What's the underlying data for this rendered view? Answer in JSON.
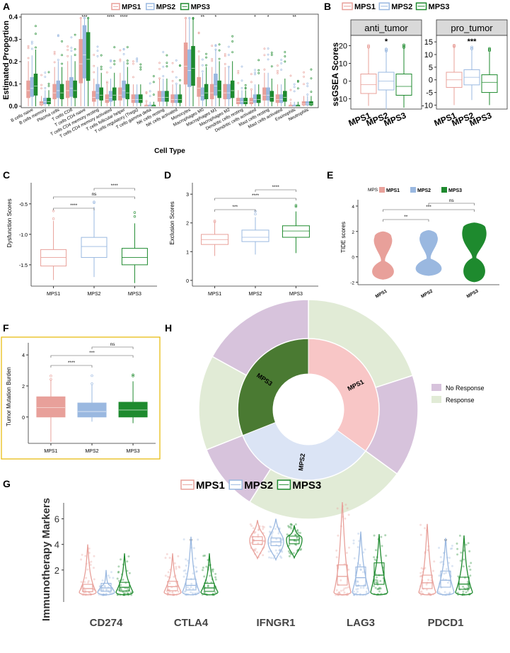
{
  "colors": {
    "mps1": "#e8a09a",
    "mps2": "#9ab8e0",
    "mps3": "#1e8a2e",
    "mps3_dark": "#4a7a32",
    "no_response": "#d7c3dc",
    "response": "#e1ebd6",
    "mps1_inner": "#f8c6c6",
    "mps2_inner": "#dbe4f5"
  },
  "panels": {
    "A": {
      "letter": "A",
      "legend": [
        "MPS1",
        "MPS2",
        "MPS3"
      ],
      "ylabel": "Estimated Proportion",
      "xlabel": "Cell Type",
      "yticks": [
        "0.0",
        "0.1",
        "0.2",
        "0.3",
        "0.4"
      ],
      "celltypes": [
        "B cells naive",
        "B cells memory",
        "Plasma cells",
        "T cells CD8",
        "T cells CD4 naive",
        "T cells CD4 memory resting",
        "T cells CD4 memory activated",
        "T cells follicular helper",
        "T cells regulatory (Tregs)",
        "T cells gamma delta",
        "NK cells resting",
        "NK cells activated",
        "Monocytes",
        "Macrophages M0",
        "Macrophages M1",
        "Macrophages M2",
        "Dendritic cells resting",
        "Dendritic cells activated",
        "Mast cells resting",
        "Mast cells activated",
        "Eosinophils",
        "Neutrophils"
      ],
      "sig": [
        "",
        "",
        "",
        "",
        "***",
        "",
        "****",
        "****",
        "",
        "",
        "",
        "",
        "",
        "**",
        "*",
        "",
        "",
        "*",
        "*",
        "",
        "**",
        ""
      ]
    },
    "B": {
      "letter": "B",
      "legend": [
        "MPS1",
        "MPS2",
        "MPS3"
      ],
      "ylabel": "ssGSEA Scores",
      "facets": [
        {
          "title": "anti_tumor",
          "sig": "*",
          "yticks": [
            "-10",
            "0",
            "10",
            "20"
          ],
          "xticks": [
            "MPS1",
            "MPS2",
            "MPS3"
          ]
        },
        {
          "title": "pro_tumor",
          "sig": "***",
          "yticks": [
            "-10",
            "-5",
            "0",
            "5",
            "10",
            "15"
          ],
          "xticks": [
            "MPS1",
            "MPS2",
            "MPS3"
          ]
        }
      ]
    },
    "C": {
      "letter": "C",
      "ylabel": "Dysfunction Scores",
      "yticks": [
        "-1.5",
        "-1.0",
        "-0.5"
      ],
      "xticks": [
        "MPS1",
        "MPS2",
        "MPS3"
      ],
      "brackets": [
        "****",
        "ns",
        "****"
      ]
    },
    "D": {
      "letter": "D",
      "ylabel": "Exclusion Scores",
      "yticks": [
        "0",
        "1",
        "2",
        "3"
      ],
      "xticks": [
        "MPS1",
        "MPS2",
        "MPS3"
      ],
      "brackets": [
        "***",
        "****",
        "****"
      ]
    },
    "E": {
      "letter": "E",
      "ylabel": "TIDE scores",
      "legend_title": "MPS",
      "legend": [
        "MPS1",
        "MPS2",
        "MPS3"
      ],
      "yticks": [
        "-2",
        "0",
        "2",
        "4"
      ],
      "xticks": [
        "MPS1",
        "MPS2",
        "MPS3"
      ],
      "brackets": [
        "**",
        "***",
        "ns"
      ]
    },
    "F": {
      "letter": "F",
      "ylabel": "Tumor Mutation Burden",
      "yticks": [
        "0",
        "2",
        "4"
      ],
      "xticks": [
        "MPS1",
        "MPS2",
        "MPS3"
      ],
      "brackets": [
        "****",
        "***",
        "ns"
      ]
    },
    "H": {
      "letter": "H",
      "inner": [
        "MPS1",
        "MPS2",
        "MPS3"
      ],
      "legend": [
        "No Response",
        "Response"
      ]
    },
    "G": {
      "letter": "G",
      "legend": [
        "MPS1",
        "MPS2",
        "MPS3"
      ],
      "ylabel": "Immunotherapy Markers",
      "yticks": [
        "2",
        "4",
        "6"
      ],
      "genes": [
        "CD274",
        "CTLA4",
        "IFNGR1",
        "LAG3",
        "PDCD1"
      ],
      "sig": [
        "",
        "*",
        "",
        "",
        "*"
      ]
    }
  },
  "chart_data": [
    {
      "panel": "A",
      "type": "box",
      "series": [
        {
          "name": "MPS1",
          "medians": [
            0.07,
            0.01,
            0.06,
            0.07,
            0.19,
            0.04,
            0.03,
            0.05,
            0.03,
            0.0,
            0.04,
            0.03,
            0.18,
            0.08,
            0.06,
            0.06,
            0.02,
            0.02,
            0.05,
            0.03,
            0.0,
            0.01
          ]
        },
        {
          "name": "MPS2",
          "medians": [
            0.08,
            0.02,
            0.07,
            0.08,
            0.23,
            0.06,
            0.04,
            0.07,
            0.03,
            0.0,
            0.04,
            0.03,
            0.16,
            0.05,
            0.09,
            0.06,
            0.02,
            0.03,
            0.05,
            0.03,
            0.0,
            0.01
          ]
        },
        {
          "name": "MPS3",
          "medians": [
            0.09,
            0.02,
            0.06,
            0.07,
            0.21,
            0.05,
            0.05,
            0.06,
            0.03,
            0.0,
            0.04,
            0.03,
            0.17,
            0.06,
            0.07,
            0.07,
            0.02,
            0.03,
            0.04,
            0.04,
            0.0,
            0.01
          ]
        }
      ],
      "ylim": [
        0,
        0.4
      ]
    },
    {
      "panel": "B",
      "type": "box",
      "facets": [
        {
          "title": "anti_tumor",
          "ylim": [
            -15,
            25
          ],
          "boxes": [
            {
              "name": "MPS1",
              "min": -14,
              "q1": -7,
              "median": -2,
              "q3": 4,
              "max": 19
            },
            {
              "name": "MPS2",
              "min": -16,
              "q1": -5,
              "median": 0,
              "q3": 5,
              "max": 17
            },
            {
              "name": "MPS3",
              "min": -15,
              "q1": -8,
              "median": -3,
              "q3": 4,
              "max": 19
            }
          ]
        },
        {
          "title": "pro_tumor",
          "ylim": [
            -11,
            17
          ],
          "boxes": [
            {
              "name": "MPS1",
              "min": -10,
              "q1": -3,
              "median": 0,
              "q3": 3,
              "max": 13
            },
            {
              "name": "MPS2",
              "min": -8,
              "q1": -2,
              "median": 1,
              "q3": 4,
              "max": 12
            },
            {
              "name": "MPS3",
              "min": -10,
              "q1": -5,
              "median": -1,
              "q3": 2,
              "max": 11
            }
          ]
        }
      ]
    },
    {
      "panel": "C",
      "type": "box",
      "ylim": [
        -1.85,
        -0.2
      ],
      "boxes": [
        {
          "name": "MPS1",
          "min": -1.75,
          "q1": -1.52,
          "median": -1.38,
          "q3": -1.25,
          "max": -0.78
        },
        {
          "name": "MPS2",
          "min": -1.7,
          "q1": -1.38,
          "median": -1.2,
          "q3": -1.05,
          "max": -0.55
        },
        {
          "name": "MPS3",
          "min": -1.8,
          "q1": -1.5,
          "median": -1.38,
          "q3": -1.23,
          "max": -0.82
        }
      ]
    },
    {
      "panel": "D",
      "type": "box",
      "ylim": [
        -0.2,
        3.3
      ],
      "boxes": [
        {
          "name": "MPS1",
          "min": 0.85,
          "q1": 1.25,
          "median": 1.42,
          "q3": 1.6,
          "max": 2.0
        },
        {
          "name": "MPS2",
          "min": 0.9,
          "q1": 1.35,
          "median": 1.5,
          "q3": 1.75,
          "max": 2.2
        },
        {
          "name": "MPS3",
          "min": 0.95,
          "q1": 1.5,
          "median": 1.72,
          "q3": 1.9,
          "max": 2.4
        }
      ]
    },
    {
      "panel": "E",
      "type": "violin",
      "ylim": [
        -2.2,
        4.5
      ],
      "violins": [
        {
          "name": "MPS1",
          "min": -1.8,
          "max": 2.0
        },
        {
          "name": "MPS2",
          "min": -1.5,
          "max": 2.1
        },
        {
          "name": "MPS3",
          "min": -2.0,
          "max": 2.7
        }
      ]
    },
    {
      "panel": "F",
      "type": "box",
      "ylim": [
        -1.7,
        4.6
      ],
      "boxes": [
        {
          "name": "MPS1",
          "min": -1.6,
          "q1": 0,
          "median": 0.6,
          "q3": 1.3,
          "max": 2.4
        },
        {
          "name": "MPS2",
          "min": -0.3,
          "q1": 0,
          "median": 0.35,
          "q3": 0.9,
          "max": 2.1
        },
        {
          "name": "MPS3",
          "min": -0.4,
          "q1": 0,
          "median": 0.45,
          "q3": 0.95,
          "max": 2.3
        }
      ]
    },
    {
      "panel": "H",
      "type": "pie",
      "inner": [
        {
          "label": "MPS1",
          "value": 0.35
        },
        {
          "label": "MPS2",
          "value": 0.34
        },
        {
          "label": "MPS3",
          "value": 0.31
        }
      ],
      "outer": [
        {
          "group": "MPS1",
          "response": 0.2,
          "no_response": 0.15
        },
        {
          "group": "MPS2",
          "response": 0.24,
          "no_response": 0.1
        },
        {
          "group": "MPS3",
          "response": 0.14,
          "no_response": 0.17
        }
      ]
    },
    {
      "panel": "G",
      "type": "violin",
      "ylim": [
        -0.5,
        7.8
      ],
      "genes": [
        {
          "gene": "CD274",
          "medians": [
            0.55,
            0.6,
            0.65
          ],
          "max": [
            4.0,
            2.0,
            3.3
          ]
        },
        {
          "gene": "CTLA4",
          "medians": [
            0.7,
            0.8,
            0.6
          ],
          "max": [
            3.3,
            4.6,
            3.3
          ]
        },
        {
          "gene": "IFNGR1",
          "medians": [
            4.3,
            4.2,
            4.35
          ],
          "max": [
            5.9,
            6.0,
            5.5
          ]
        },
        {
          "gene": "LAG3",
          "medians": [
            1.5,
            1.4,
            1.6
          ],
          "max": [
            7.3,
            5.0,
            4.8
          ]
        },
        {
          "gene": "PDCD1",
          "medians": [
            1.0,
            1.2,
            0.9
          ],
          "max": [
            5.6,
            4.5,
            4.7
          ]
        }
      ]
    }
  ]
}
